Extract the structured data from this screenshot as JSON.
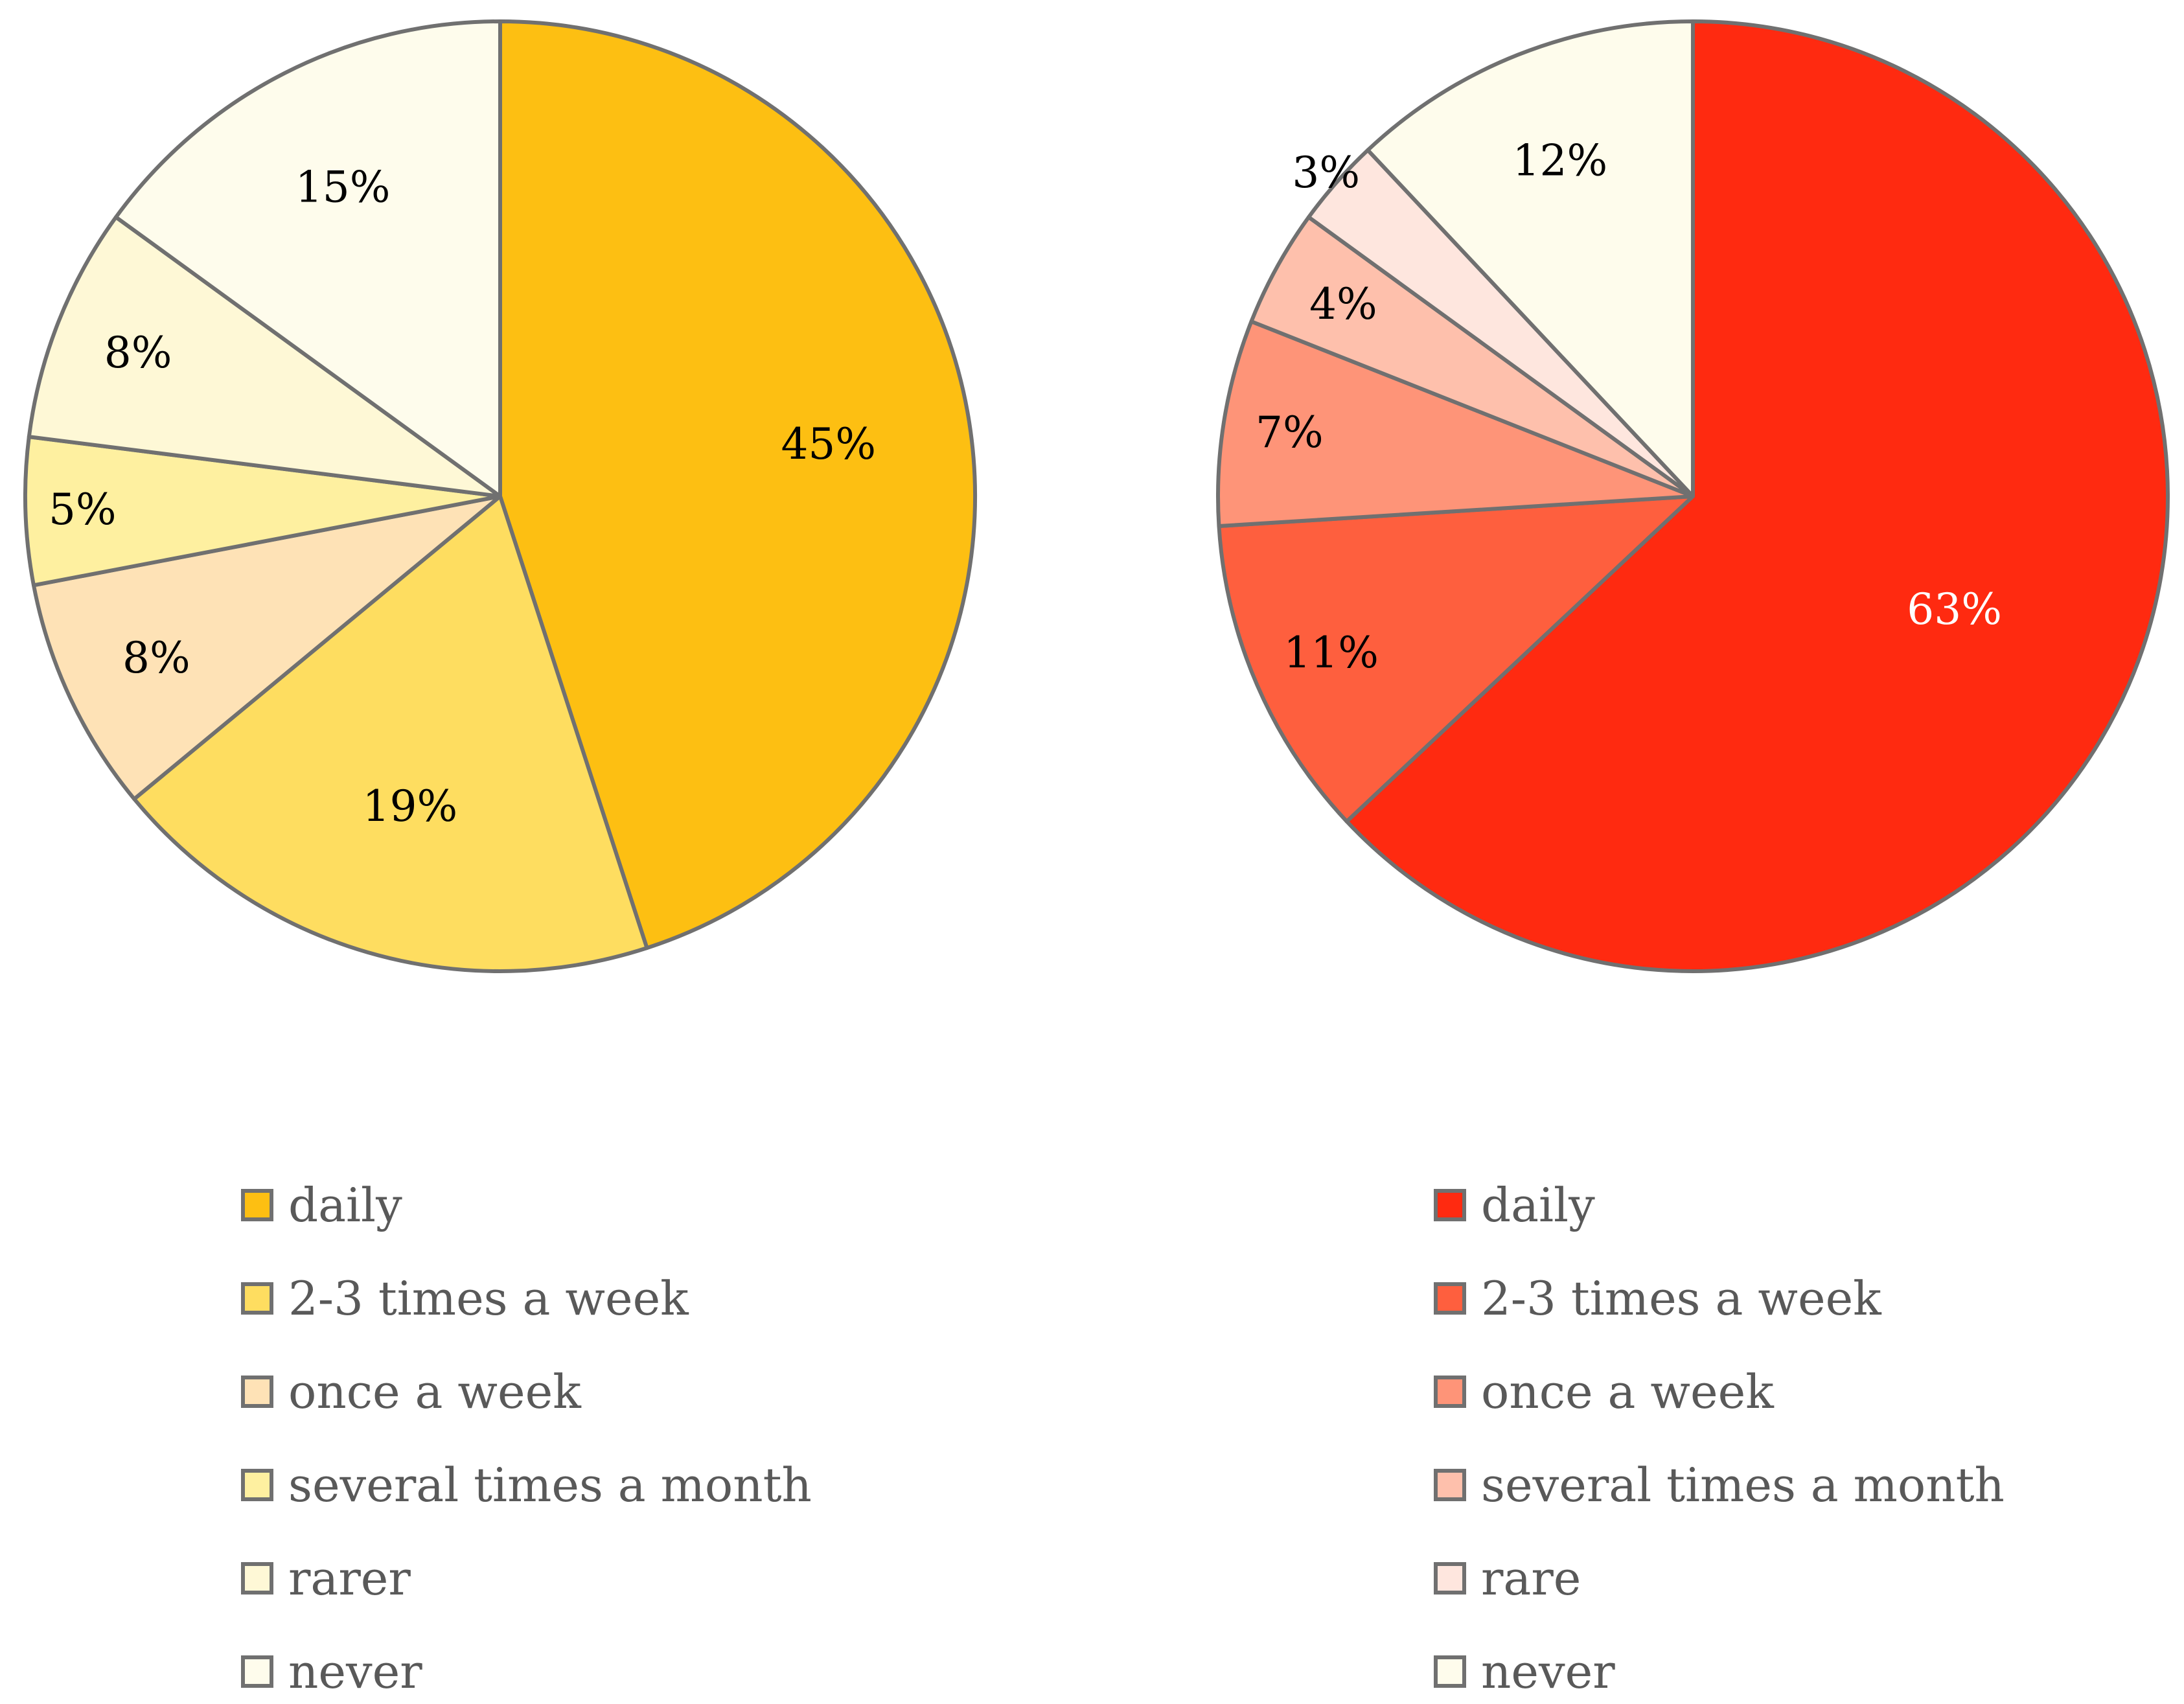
{
  "chart_data": [
    {
      "type": "pie",
      "title": "",
      "legend_position": "bottom",
      "categories": [
        "daily",
        "2-3 times a week",
        "once a week",
        "several times a month",
        "rarer",
        "never"
      ],
      "values": [
        45,
        19,
        8,
        5,
        8,
        15
      ],
      "data_labels": [
        "45%",
        "19%",
        "8%",
        "5%",
        "8%",
        "15%"
      ],
      "colors": [
        "#FDBF12",
        "#FEDD60",
        "#FEE2B6",
        "#FEF0A0",
        "#FEF8D6",
        "#FEFCEC"
      ],
      "label_colors": [
        "#000000",
        "#000000",
        "#000000",
        "#000000",
        "#000000",
        "#000000"
      ]
    },
    {
      "type": "pie",
      "title": "",
      "legend_position": "bottom",
      "categories": [
        "daily",
        "2-3 times a week",
        "once a week",
        "several times a month",
        "rare",
        "never"
      ],
      "values": [
        63,
        11,
        7,
        4,
        3,
        12
      ],
      "data_labels": [
        "63%",
        "11%",
        "7%",
        "4%",
        "3%",
        "12%"
      ],
      "colors": [
        "#FF2A10",
        "#FE5F3E",
        "#FE9478",
        "#FEC0AC",
        "#FEE6DE",
        "#FEFCEC"
      ],
      "label_colors": [
        "#FFFFFF",
        "#000000",
        "#000000",
        "#000000",
        "#000000",
        "#000000"
      ]
    }
  ]
}
